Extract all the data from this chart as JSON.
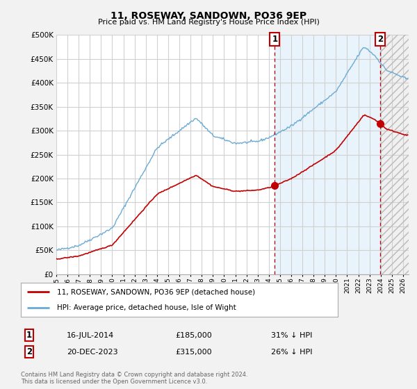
{
  "title": "11, ROSEWAY, SANDOWN, PO36 9EP",
  "subtitle": "Price paid vs. HM Land Registry's House Price Index (HPI)",
  "ytick_values": [
    0,
    50000,
    100000,
    150000,
    200000,
    250000,
    300000,
    350000,
    400000,
    450000,
    500000
  ],
  "ylim": [
    0,
    500000
  ],
  "xlim_left": 1995,
  "xlim_right": 2026.5,
  "sale1_date": "16-JUL-2014",
  "sale1_price": 185000,
  "sale1_year": 2014.538,
  "sale1_label": "31% ↓ HPI",
  "sale2_date": "20-DEC-2023",
  "sale2_price": 315000,
  "sale2_year": 2023.962,
  "sale2_label": "26% ↓ HPI",
  "hpi_color": "#6aaad4",
  "price_color": "#c00000",
  "vline_color": "#c00000",
  "shade_color": "#ddeeff",
  "legend_label1": "11, ROSEWAY, SANDOWN, PO36 9EP (detached house)",
  "legend_label2": "HPI: Average price, detached house, Isle of Wight",
  "footnote": "Contains HM Land Registry data © Crown copyright and database right 2024.\nThis data is licensed under the Open Government Licence v3.0.",
  "bg_color": "#f2f2f2",
  "plot_bg": "#ffffff",
  "grid_color": "#d0d0d0"
}
